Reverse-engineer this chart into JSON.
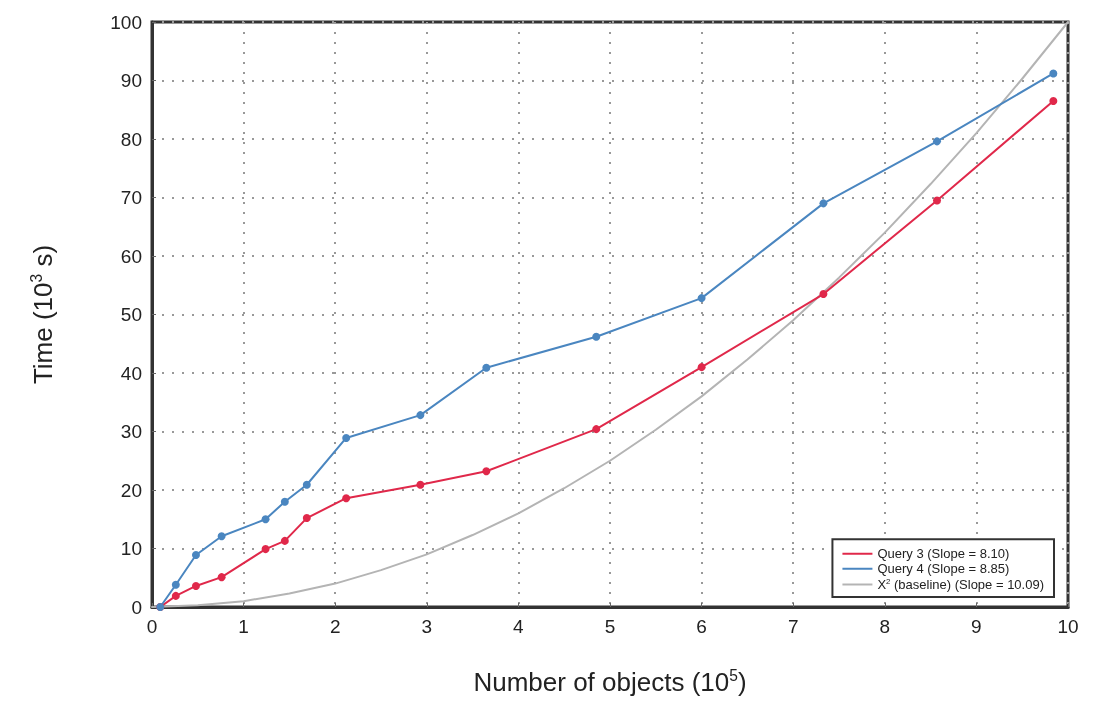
{
  "chart_data": {
    "type": "line",
    "xlabel": "Number of objects (10$^{5}$)",
    "ylabel": "Time (10$^{3}$ s)",
    "xlim": [
      0,
      10
    ],
    "xticks": [
      0,
      1,
      2,
      3,
      4,
      5,
      6,
      7,
      8,
      9,
      10
    ],
    "ylim": [
      0,
      100
    ],
    "yticks": [
      0,
      10,
      20,
      30,
      40,
      50,
      60,
      70,
      80,
      90,
      100
    ],
    "grid": true,
    "legend": "bottom right",
    "marker": "circle",
    "line_style": "solid",
    "series": [
      {
        "name": "Query 3 (Slope = 8.10)",
        "color": "#e0284a",
        "x": [
          0.09,
          0.26,
          0.48,
          0.76,
          1.24,
          1.45,
          1.69,
          2.12,
          2.93,
          3.65,
          4.85,
          6.0,
          7.33,
          8.57,
          9.84
        ],
        "values": [
          0,
          1.9,
          3.6,
          5.1,
          9.9,
          11.3,
          15.2,
          18.6,
          20.9,
          23.2,
          30.4,
          41,
          53.5,
          69.5,
          86.5
        ]
      },
      {
        "name": "Query 4 (Slope = 8.85)",
        "color": "#4a86c0",
        "x": [
          0.09,
          0.26,
          0.48,
          0.76,
          1.24,
          1.45,
          1.69,
          2.12,
          2.93,
          3.65,
          4.85,
          6.0,
          7.33,
          8.57,
          9.84
        ],
        "values": [
          0,
          3.8,
          8.9,
          12.1,
          15,
          18,
          20.9,
          28.9,
          32.8,
          40.9,
          46.2,
          52.8,
          69,
          79.6,
          91.2
        ]
      },
      {
        "name": "X$^{2}$ (baseline) (Slope = 10.09)",
        "color": "#b4b4b4",
        "marker": "none",
        "x": [
          0,
          0.5,
          1,
          1.5,
          2,
          2.5,
          3,
          3.5,
          4,
          4.5,
          5,
          5.5,
          6,
          6.5,
          7,
          7.5,
          8,
          8.5,
          9,
          9.5,
          10
        ],
        "values": [
          0,
          0.3,
          1,
          2.3,
          4,
          6.3,
          9,
          12.3,
          16,
          20.3,
          25,
          30.3,
          36,
          42.3,
          49,
          56.3,
          64,
          72.3,
          81,
          90.3,
          100
        ]
      }
    ]
  }
}
